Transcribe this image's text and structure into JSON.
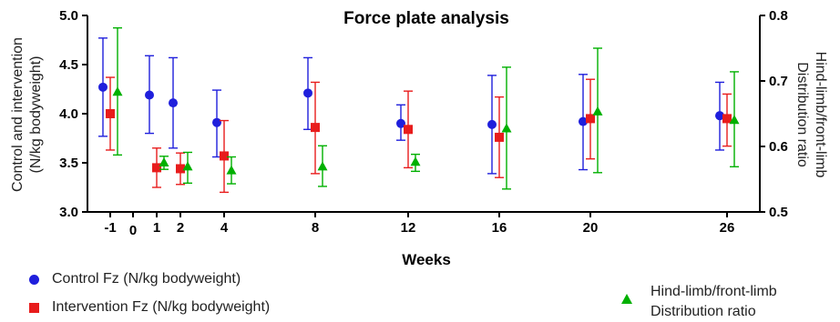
{
  "chart_data": {
    "type": "scatter",
    "title": "Force plate analysis",
    "xlabel": "Weeks",
    "ylabel": "Control and intervention (N/kg bodyweight)",
    "ylabel_lines": [
      "Control and intervention",
      "(N/kg bodyweight)"
    ],
    "y2label": "Hind-limb/front-limb Distribution ratio",
    "y2label_lines": [
      "Hind-limb/front-limb",
      "Distribution ratio"
    ],
    "x_ticks": [
      -1,
      0,
      1,
      2,
      4,
      8,
      12,
      16,
      20,
      26
    ],
    "x_tick_labels": [
      "-1",
      "0",
      "1",
      "2",
      "4",
      "8",
      "12",
      "16",
      "20",
      "26"
    ],
    "ylim": [
      3.0,
      5.0
    ],
    "y_ticks": [
      3.0,
      3.5,
      4.0,
      4.5,
      5.0
    ],
    "y_tick_labels": [
      "3.0",
      "3.5",
      "4.0",
      "4.5",
      "5.0"
    ],
    "y2lim": [
      0.5,
      0.8
    ],
    "y2_ticks": [
      0.5,
      0.6,
      0.7,
      0.8
    ],
    "y2_tick_labels": [
      "0.5",
      "0.6",
      "0.7",
      "0.8"
    ],
    "grid": false,
    "series": [
      {
        "name": "Control Fz (N/kg bodyweight)",
        "axis": "left",
        "marker": "circle",
        "color": "#1f1fdc",
        "x": [
          -1,
          1,
          2,
          4,
          8,
          12,
          16,
          20,
          26
        ],
        "y": [
          4.27,
          4.19,
          4.11,
          3.91,
          4.21,
          3.9,
          3.89,
          3.92,
          3.98
        ],
        "err_low": [
          3.77,
          3.8,
          3.65,
          3.56,
          3.84,
          3.73,
          3.39,
          3.43,
          3.63
        ],
        "err_high": [
          4.77,
          4.59,
          4.57,
          4.24,
          4.57,
          4.09,
          4.39,
          4.4,
          4.32
        ]
      },
      {
        "name": "Intervention Fz (N/kg bodyweight)",
        "axis": "left",
        "marker": "square",
        "color": "#e81c1c",
        "x": [
          -1,
          1,
          2,
          4,
          8,
          12,
          16,
          20,
          26
        ],
        "y": [
          4.0,
          3.45,
          3.44,
          3.57,
          3.86,
          3.84,
          3.76,
          3.95,
          3.95
        ],
        "err_low": [
          3.63,
          3.25,
          3.28,
          3.2,
          3.39,
          3.45,
          3.35,
          3.54,
          3.67
        ],
        "err_high": [
          4.37,
          3.65,
          3.6,
          3.93,
          4.32,
          4.23,
          4.17,
          4.35,
          4.2
        ]
      },
      {
        "name": "Hind-limb/front-limb Distribution ratio",
        "name_lines": [
          "Hind-limb/front-limb",
          "Distribution ratio"
        ],
        "axis": "right",
        "marker": "triangle",
        "color": "#00b000",
        "x": [
          -1,
          1,
          2,
          4,
          8,
          12,
          16,
          20,
          26
        ],
        "y": [
          0.683,
          0.575,
          0.569,
          0.563,
          0.569,
          0.576,
          0.627,
          0.653,
          0.64
        ],
        "err_low": [
          0.587,
          0.565,
          0.544,
          0.543,
          0.539,
          0.562,
          0.535,
          0.56,
          0.569
        ],
        "err_high": [
          0.781,
          0.585,
          0.591,
          0.584,
          0.601,
          0.588,
          0.721,
          0.75,
          0.714
        ]
      }
    ],
    "legend": "bottom"
  }
}
